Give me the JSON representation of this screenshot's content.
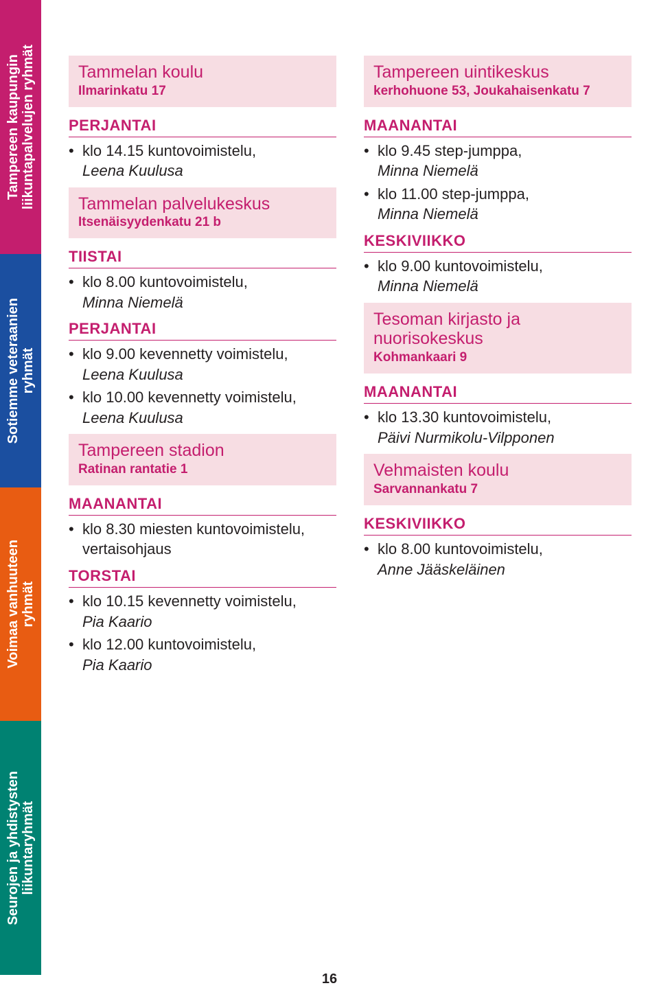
{
  "colors": {
    "accent": "#c41e6e",
    "venue_bg": "#f7dde3",
    "tab1": "#c41e6e",
    "tab2": "#1b4fa0",
    "tab3": "#e85c12",
    "tab4": "#008272",
    "text": "#231f20"
  },
  "tabs": [
    {
      "label": "Tampereen kaupungin\nliikuntapalvelujen ryhmät"
    },
    {
      "label": "Sotiemme veteraanien\nryhmät"
    },
    {
      "label": "Voimaa vanhuuteen\nryhmät"
    },
    {
      "label": "Seurojen ja yhdistysten\nliikuntaryhmät"
    }
  ],
  "left": [
    {
      "venue": "Tammelan koulu",
      "address": "Ilmarinkatu 17",
      "days": [
        {
          "day": "PERJANTAI",
          "items": [
            {
              "text": "klo 14.15 kuntovoimistelu,",
              "instructor": "Leena Kuulusa"
            }
          ]
        }
      ]
    },
    {
      "venue": "Tammelan palvelukeskus",
      "address": "Itsenäisyydenkatu 21 b",
      "days": [
        {
          "day": "TIISTAI",
          "items": [
            {
              "text": "klo 8.00 kuntovoimistelu,",
              "instructor": "Minna Niemelä"
            }
          ]
        },
        {
          "day": "PERJANTAI",
          "items": [
            {
              "text": "klo 9.00 kevennetty voimistelu,",
              "instructor": "Leena Kuulusa"
            },
            {
              "text": "klo 10.00 kevennetty voimistelu,",
              "instructor": "Leena Kuulusa"
            }
          ]
        }
      ]
    },
    {
      "venue": "Tampereen stadion",
      "address": "Ratinan rantatie 1",
      "days": [
        {
          "day": "MAANANTAI",
          "items": [
            {
              "text": "klo 8.30 miesten kuntovoimistelu, vertaisohjaus",
              "instructor": ""
            }
          ]
        },
        {
          "day": "TORSTAI",
          "items": [
            {
              "text": "klo 10.15 kevennetty voimistelu,",
              "instructor": "Pia Kaario"
            },
            {
              "text": "klo 12.00 kuntovoimistelu,",
              "instructor": "Pia Kaario"
            }
          ]
        }
      ]
    }
  ],
  "right": [
    {
      "venue": "Tampereen uintikeskus",
      "address": "kerhohuone 53, Joukahaisenkatu 7",
      "days": [
        {
          "day": "MAANANTAI",
          "items": [
            {
              "text": "klo 9.45 step-jumppa,",
              "instructor": "Minna Niemelä"
            },
            {
              "text": "klo 11.00 step-jumppa,",
              "instructor": "Minna Niemelä"
            }
          ]
        },
        {
          "day": "KESKIVIIKKO",
          "items": [
            {
              "text": "klo 9.00 kuntovoimistelu,",
              "instructor": "Minna Niemelä"
            }
          ]
        }
      ]
    },
    {
      "venue": "Tesoman kirjasto ja nuorisokeskus",
      "address": "Kohmankaari 9",
      "days": [
        {
          "day": "MAANANTAI",
          "items": [
            {
              "text": "klo 13.30 kuntovoimistelu,",
              "instructor": "Päivi Nurmikolu-Vilpponen"
            }
          ]
        }
      ]
    },
    {
      "venue": "Vehmaisten koulu",
      "address": "Sarvannankatu 7",
      "days": [
        {
          "day": "KESKIVIIKKO",
          "items": [
            {
              "text": "klo 8.00 kuntovoimistelu,",
              "instructor": "Anne Jääskeläinen"
            }
          ]
        }
      ]
    }
  ],
  "page_number": "16"
}
